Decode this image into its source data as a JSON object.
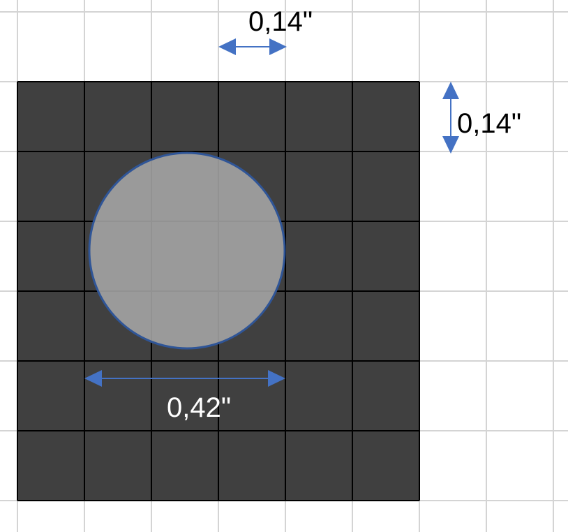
{
  "labels": {
    "top_spacing": "0,14\"",
    "right_spacing": "0,14\"",
    "circle_diameter": "0,42\""
  },
  "colors": {
    "square_fill": "#404040",
    "circle_fill": "#a6a6a6",
    "circle_stroke": "#2f5597",
    "arrow": "#4472c4",
    "grid": "#d4d4d4"
  }
}
